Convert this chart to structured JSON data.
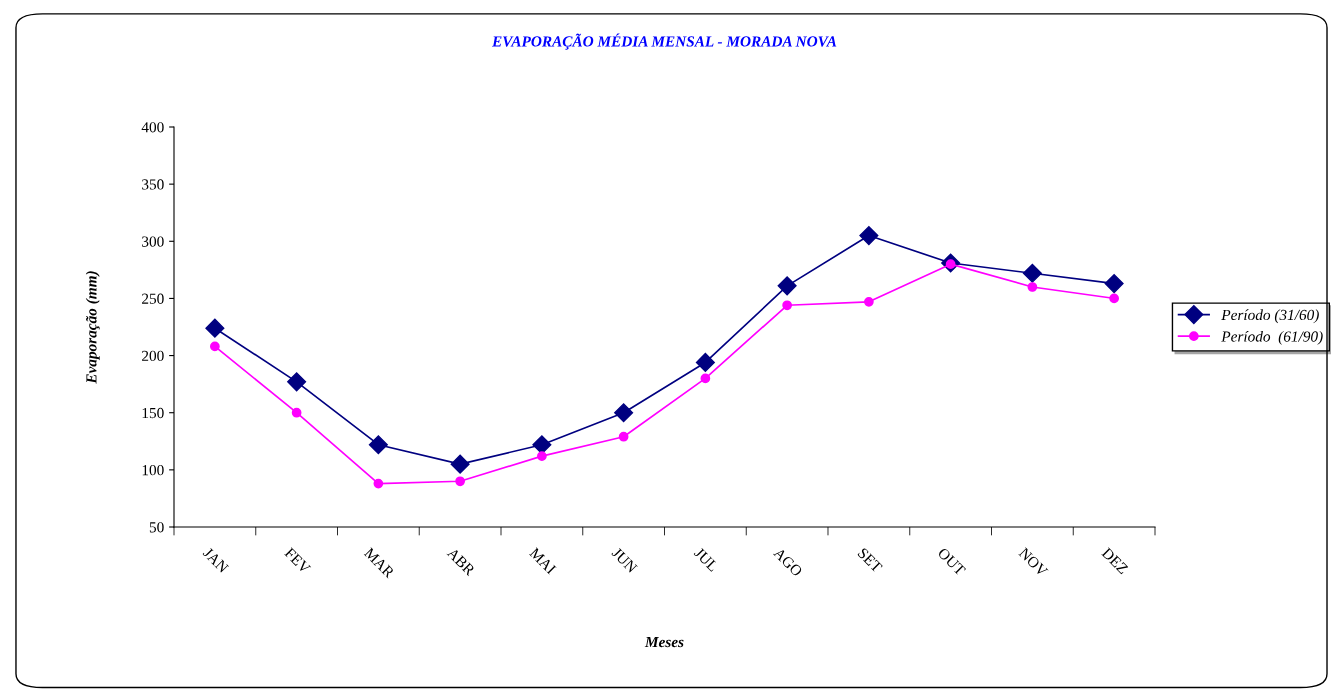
{
  "chart_data": {
    "type": "line",
    "title": "EVAPORAÇÃO MÉDIA MENSAL - MORADA NOVA",
    "xlabel": "Meses",
    "ylabel": "Evaporação (mm)",
    "categories": [
      "JAN",
      "FEV",
      "MAR",
      "ABR",
      "MAI",
      "JUN",
      "JUL",
      "AGO",
      "SET",
      "OUT",
      "NOV",
      "DEZ"
    ],
    "series": [
      {
        "name": "Período (31/60)",
        "color": "#000080",
        "marker": "diamond",
        "values": [
          224,
          177,
          122,
          105,
          122,
          150,
          194,
          261,
          305,
          281,
          272,
          263
        ]
      },
      {
        "name": "Período  (61/90)",
        "color": "#ff00ff",
        "marker": "circle",
        "values": [
          208,
          150,
          88,
          90,
          112,
          129,
          180,
          244,
          247,
          280,
          260,
          250
        ]
      }
    ],
    "ylim": [
      50,
      400
    ],
    "yticks": [
      50,
      100,
      150,
      200,
      250,
      300,
      350,
      400
    ],
    "grid": false,
    "legend": "right",
    "line_style": "solid"
  }
}
